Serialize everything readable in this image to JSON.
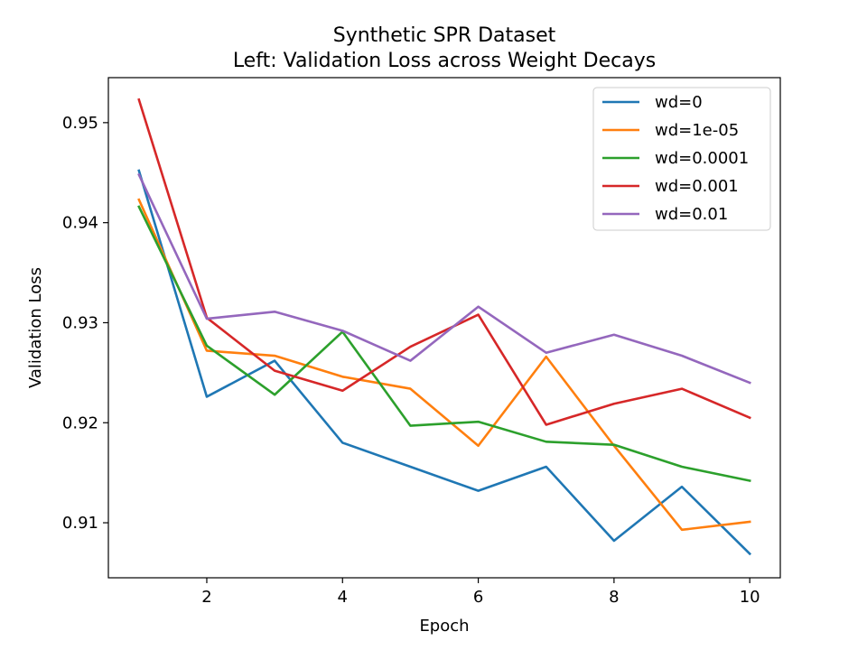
{
  "chart_data": {
    "type": "line",
    "title_line1": "Synthetic SPR Dataset",
    "title_line2": "Left: Validation Loss across Weight Decays",
    "xlabel": "Epoch",
    "ylabel": "Validation Loss",
    "xlim": [
      0.55,
      10.45
    ],
    "ylim": [
      0.9045,
      0.9545
    ],
    "xticks": [
      2,
      4,
      6,
      8,
      10
    ],
    "xtick_labels": [
      "2",
      "4",
      "6",
      "8",
      "10"
    ],
    "yticks": [
      0.91,
      0.92,
      0.93,
      0.94,
      0.95
    ],
    "ytick_labels": [
      "0.91",
      "0.92",
      "0.93",
      "0.94",
      "0.95"
    ],
    "grid": false,
    "legend_position": "top-right",
    "x": [
      1,
      2,
      3,
      4,
      5,
      6,
      7,
      8,
      9,
      10
    ],
    "series": [
      {
        "name": "wd=0",
        "color": "#1f77b4",
        "values": [
          0.9452,
          0.9226,
          0.9262,
          0.918,
          0.9156,
          0.9132,
          0.9156,
          0.9082,
          0.9136,
          0.9069
        ]
      },
      {
        "name": "wd=1e-05",
        "color": "#ff7f0e",
        "values": [
          0.9423,
          0.9272,
          0.9267,
          0.9246,
          0.9234,
          0.9177,
          0.9266,
          0.9177,
          0.9093,
          0.9101
        ]
      },
      {
        "name": "wd=0.0001",
        "color": "#2ca02c",
        "values": [
          0.9416,
          0.9277,
          0.9228,
          0.9291,
          0.9197,
          0.9201,
          0.9181,
          0.9178,
          0.9156,
          0.9142
        ]
      },
      {
        "name": "wd=0.001",
        "color": "#d62728",
        "values": [
          0.9523,
          0.9305,
          0.9252,
          0.9232,
          0.9276,
          0.9308,
          0.9198,
          0.9219,
          0.9234,
          0.9205
        ]
      },
      {
        "name": "wd=0.01",
        "color": "#9467bd",
        "values": [
          0.9448,
          0.9304,
          0.9311,
          0.9292,
          0.9262,
          0.9316,
          0.927,
          0.9288,
          0.9267,
          0.924
        ]
      }
    ]
  }
}
